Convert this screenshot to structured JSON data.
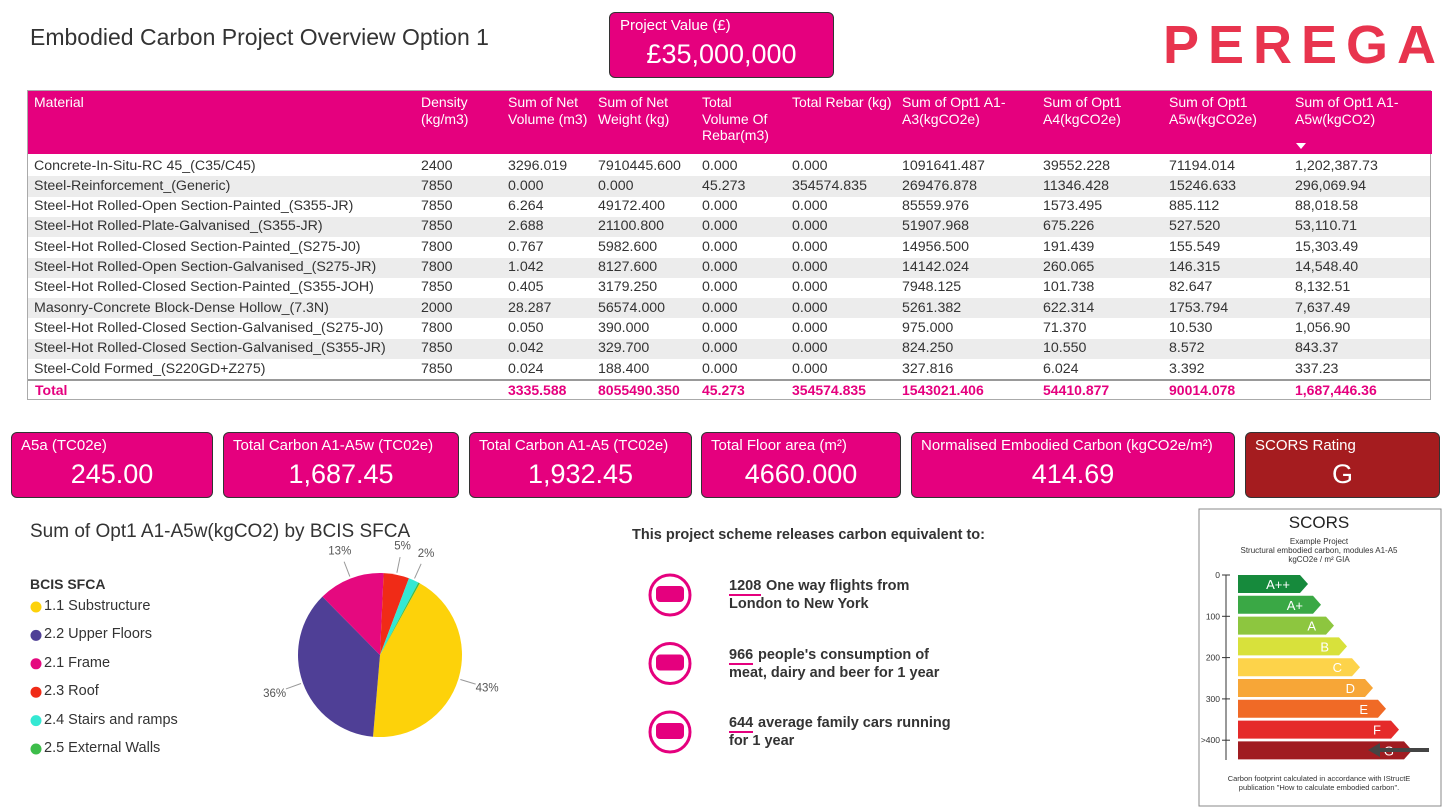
{
  "title": "Embodied Carbon Project Overview Option 1",
  "project_value": {
    "label": "Project Value (£)",
    "value": "£35,000,000"
  },
  "logo": "PEREGA",
  "table": {
    "columns": [
      "Material",
      "Density (kg/m3)",
      "Sum of Net Volume (m3)",
      "Sum of Net Weight (kg)",
      "Total Volume Of Rebar(m3)",
      "Total Rebar (kg)",
      "Sum of Opt1 A1-A3(kgCO2e)",
      "Sum of Opt1 A4(kgCO2e)",
      "Sum of Opt1 A5w(kgCO2e)",
      "Sum of Opt1 A1-A5w(kgCO2)"
    ],
    "rows": [
      [
        "Concrete-In-Situ-RC 45_(C35/C45)",
        "2400",
        "3296.019",
        "7910445.600",
        "0.000",
        "0.000",
        "1091641.487",
        "39552.228",
        "71194.014",
        "1,202,387.73"
      ],
      [
        "Steel-Reinforcement_(Generic)",
        "7850",
        "0.000",
        "0.000",
        "45.273",
        "354574.835",
        "269476.878",
        "11346.428",
        "15246.633",
        "296,069.94"
      ],
      [
        "Steel-Hot Rolled-Open Section-Painted_(S355-JR)",
        "7850",
        "6.264",
        "49172.400",
        "0.000",
        "0.000",
        "85559.976",
        "1573.495",
        "885.112",
        "88,018.58"
      ],
      [
        "Steel-Hot Rolled-Plate-Galvanised_(S355-JR)",
        "7850",
        "2.688",
        "21100.800",
        "0.000",
        "0.000",
        "51907.968",
        "675.226",
        "527.520",
        "53,110.71"
      ],
      [
        "Steel-Hot Rolled-Closed Section-Painted_(S275-J0)",
        "7800",
        "0.767",
        "5982.600",
        "0.000",
        "0.000",
        "14956.500",
        "191.439",
        "155.549",
        "15,303.49"
      ],
      [
        "Steel-Hot Rolled-Open Section-Galvanised_(S275-JR)",
        "7800",
        "1.042",
        "8127.600",
        "0.000",
        "0.000",
        "14142.024",
        "260.065",
        "146.315",
        "14,548.40"
      ],
      [
        "Steel-Hot Rolled-Closed Section-Painted_(S355-JOH)",
        "7850",
        "0.405",
        "3179.250",
        "0.000",
        "0.000",
        "7948.125",
        "101.738",
        "82.647",
        "8,132.51"
      ],
      [
        "Masonry-Concrete Block-Dense Hollow_(7.3N)",
        "2000",
        "28.287",
        "56574.000",
        "0.000",
        "0.000",
        "5261.382",
        "622.314",
        "1753.794",
        "7,637.49"
      ],
      [
        "Steel-Hot Rolled-Closed Section-Galvanised_(S275-J0)",
        "7800",
        "0.050",
        "390.000",
        "0.000",
        "0.000",
        "975.000",
        "71.370",
        "10.530",
        "1,056.90"
      ],
      [
        "Steel-Hot Rolled-Closed Section-Galvanised_(S355-JR)",
        "7850",
        "0.042",
        "329.700",
        "0.000",
        "0.000",
        "824.250",
        "10.550",
        "8.572",
        "843.37"
      ],
      [
        "Steel-Cold Formed_(S220GD+Z275)",
        "7850",
        "0.024",
        "188.400",
        "0.000",
        "0.000",
        "327.816",
        "6.024",
        "3.392",
        "337.23"
      ]
    ],
    "total": {
      "label": "Total",
      "cells": [
        "3335.588",
        "8055490.350",
        "45.273",
        "354574.835",
        "1543021.406",
        "54410.877",
        "90014.078",
        "1,687,446.36"
      ]
    }
  },
  "kpis": [
    {
      "label": "A5a (TC02e)",
      "value": "245.00"
    },
    {
      "label": "Total Carbon A1-A5w (TC02e)",
      "value": "1,687.45"
    },
    {
      "label": "Total Carbon A1-A5 (TC02e)",
      "value": "1,932.45"
    },
    {
      "label": "Total Floor area (m²)",
      "value": "4660.000"
    },
    {
      "label": "Normalised Embodied Carbon (kgCO2e/m²)",
      "value": "414.69"
    },
    {
      "label": "SCORS Rating",
      "value": "G"
    }
  ],
  "chart_data": {
    "type": "pie",
    "title": "Sum of Opt1 A1-A5w(kgCO2) by BCIS SFCA",
    "legend_title": "BCIS SFCA",
    "categories": [
      "1.1 Substructure",
      "2.2 Upper Floors",
      "2.1 Frame",
      "2.3 Roof",
      "2.4 Stairs and ramps",
      "2.5 External Walls"
    ],
    "values": [
      43,
      36,
      13,
      5,
      2,
      0.3
    ],
    "value_labels": [
      "43%",
      "36%",
      "13%",
      "5%",
      "2%",
      null
    ],
    "colors": [
      "#fdd20a",
      "#4f3f96",
      "#e5097f",
      "#f02b17",
      "#34e8d3",
      "#3dbd4a"
    ]
  },
  "equivalents": {
    "heading": "This project scheme releases carbon equivalent to:",
    "items": [
      {
        "number": "1208",
        "line1": "One way flights from",
        "line2": "London to New York"
      },
      {
        "number": "966",
        "line1": "people's consumption of",
        "line2": "meat, dairy and beer for 1 year"
      },
      {
        "number": "644",
        "line1": "average family cars running",
        "line2": "for 1 year"
      }
    ]
  },
  "scors": {
    "title": "SCORS",
    "subtitle": [
      "Example Project",
      "Structural embodied carbon, modules A1-A5",
      "kgCO2e / m² GIA"
    ],
    "grades": [
      "A++",
      "A+",
      "A",
      "B",
      "C",
      "D",
      "E",
      "F",
      "G"
    ],
    "ticks": [
      "0",
      "100",
      "200",
      "300",
      ">400"
    ],
    "footer": [
      "Carbon footprint calculated in accordance with IStructE",
      "publication \"How to calculate embodied carbon\"."
    ]
  }
}
